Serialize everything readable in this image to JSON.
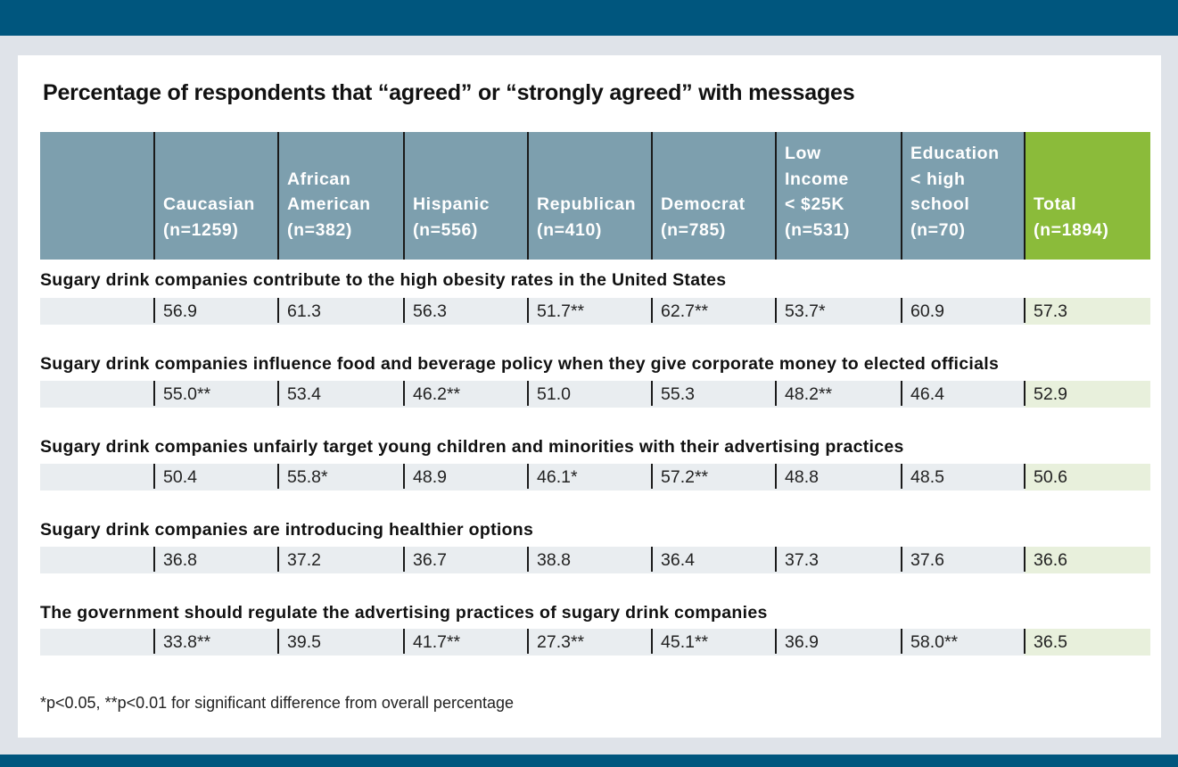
{
  "title": "Percentage of respondents that “agreed” or “strongly agreed” with messages",
  "columns": [
    {
      "lines": [
        ""
      ]
    },
    {
      "lines": [
        "Caucasian",
        "(n=1259)"
      ]
    },
    {
      "lines": [
        "African",
        "American",
        "(n=382)"
      ]
    },
    {
      "lines": [
        "Hispanic",
        "(n=556)"
      ]
    },
    {
      "lines": [
        "Republican",
        "(n=410)"
      ]
    },
    {
      "lines": [
        "Democrat",
        "(n=785)"
      ]
    },
    {
      "lines": [
        "Low",
        "Income",
        "< $25K",
        "(n=531)"
      ]
    },
    {
      "lines": [
        "Education",
        "< high",
        "school",
        "(n=70)"
      ]
    },
    {
      "lines": [
        "Total",
        "(n=1894)"
      ]
    }
  ],
  "rows": [
    {
      "question": "Sugary drink companies contribute to the high obesity rates in the United States",
      "values": [
        "56.9",
        "61.3",
        "56.3",
        "51.7**",
        "62.7**",
        "53.7*",
        "60.9",
        "57.3"
      ]
    },
    {
      "question": "Sugary drink companies influence food and beverage policy when they give corporate money to elected officials",
      "values": [
        "55.0**",
        "53.4",
        "46.2**",
        "51.0",
        "55.3",
        "48.2**",
        "46.4",
        "52.9"
      ]
    },
    {
      "question": "Sugary drink companies unfairly target young children and minorities with their advertising practices",
      "values": [
        "50.4",
        "55.8*",
        "48.9",
        "46.1*",
        "57.2**",
        "48.8",
        "48.5",
        "50.6"
      ]
    },
    {
      "question": "Sugary drink companies are introducing healthier options",
      "values": [
        "36.8",
        "37.2",
        "36.7",
        "38.8",
        "36.4",
        "37.3",
        "37.6",
        "36.6"
      ]
    },
    {
      "question": "The government should regulate the advertising practices of sugary drink companies",
      "values": [
        "33.8**",
        "39.5",
        "41.7**",
        "27.3**",
        "45.1**",
        "36.9",
        "58.0**",
        "36.5"
      ]
    }
  ],
  "footnote": "*p<0.05, **p<0.01 for significant difference from overall percentage",
  "colors": {
    "banner": "#00567e",
    "header": "#7d9fae",
    "total_header": "#8bbb3a",
    "cell": "#e9edf0",
    "total_cell": "#e8f0dc"
  }
}
